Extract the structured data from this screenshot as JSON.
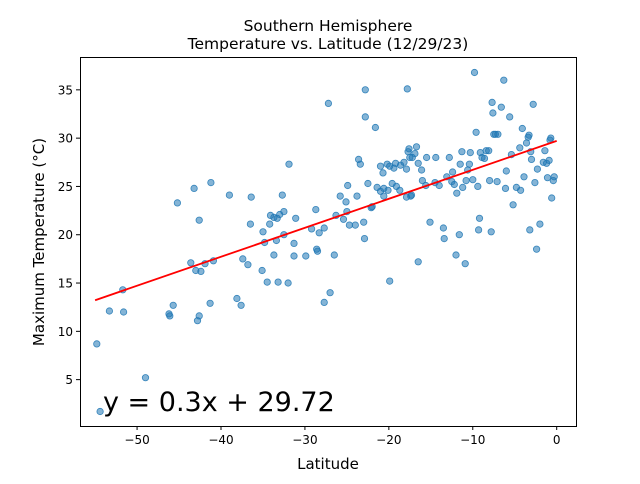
{
  "chart_data": {
    "type": "scatter",
    "title_line1": "Southern Hemisphere",
    "title_line2": "Temperature vs. Latitude (12/29/23)",
    "xlabel": "Latitude",
    "ylabel": "Maximum Temperature (°C)",
    "xlim": [
      -56.8,
      2.3
    ],
    "ylim": [
      0.2,
      38.4
    ],
    "xticks": [
      -50,
      -40,
      -30,
      -20,
      -10,
      0
    ],
    "yticks": [
      5,
      10,
      15,
      20,
      25,
      30,
      35
    ],
    "grid": false,
    "colors": {
      "points": "#1f77b4",
      "regression": "#ff0000",
      "annotation": "#ff0000"
    },
    "regression": {
      "slope": 0.3,
      "intercept": 29.72,
      "x_range": [
        -55,
        0
      ],
      "equation": "y = 0.3x + 29.72"
    },
    "points": [
      [
        -54.8,
        8.7
      ],
      [
        -54.4,
        1.7
      ],
      [
        -53.3,
        12.1
      ],
      [
        -51.7,
        14.3
      ],
      [
        -51.6,
        12.0
      ],
      [
        -49.0,
        5.2
      ],
      [
        -46.2,
        11.8
      ],
      [
        -46.1,
        11.6
      ],
      [
        -45.7,
        12.7
      ],
      [
        -45.2,
        23.3
      ],
      [
        -43.6,
        17.1
      ],
      [
        -43.2,
        24.8
      ],
      [
        -43.0,
        16.3
      ],
      [
        -42.8,
        11.1
      ],
      [
        -42.6,
        11.6
      ],
      [
        -42.6,
        21.5
      ],
      [
        -42.4,
        16.2
      ],
      [
        -41.9,
        17.0
      ],
      [
        -41.3,
        12.9
      ],
      [
        -41.2,
        25.4
      ],
      [
        -40.9,
        17.3
      ],
      [
        -39.0,
        24.1
      ],
      [
        -38.1,
        13.4
      ],
      [
        -37.6,
        12.7
      ],
      [
        -37.4,
        17.5
      ],
      [
        -36.8,
        16.9
      ],
      [
        -36.5,
        21.1
      ],
      [
        -36.4,
        23.9
      ],
      [
        -35.1,
        16.3
      ],
      [
        -35.0,
        20.3
      ],
      [
        -34.8,
        19.2
      ],
      [
        -34.5,
        15.1
      ],
      [
        -34.2,
        21.1
      ],
      [
        -34.1,
        22.0
      ],
      [
        -33.7,
        17.9
      ],
      [
        -33.7,
        21.8
      ],
      [
        -33.4,
        19.4
      ],
      [
        -33.2,
        15.1
      ],
      [
        -33.3,
        21.7
      ],
      [
        -33.0,
        22.1
      ],
      [
        -32.7,
        24.1
      ],
      [
        -32.5,
        20.0
      ],
      [
        -32.5,
        22.4
      ],
      [
        -32.0,
        15.0
      ],
      [
        -31.9,
        27.3
      ],
      [
        -31.3,
        19.1
      ],
      [
        -31.1,
        21.7
      ],
      [
        -31.3,
        17.8
      ],
      [
        -29.9,
        17.8
      ],
      [
        -29.2,
        20.6
      ],
      [
        -28.7,
        22.6
      ],
      [
        -28.6,
        18.5
      ],
      [
        -28.5,
        18.3
      ],
      [
        -28.3,
        20.2
      ],
      [
        -27.7,
        13.0
      ],
      [
        -27.7,
        20.7
      ],
      [
        -27.2,
        33.6
      ],
      [
        -27.0,
        14.0
      ],
      [
        -26.5,
        17.9
      ],
      [
        -26.3,
        22.0
      ],
      [
        -25.8,
        24.0
      ],
      [
        -25.4,
        21.6
      ],
      [
        -25.1,
        23.4
      ],
      [
        -25.0,
        22.4
      ],
      [
        -24.9,
        25.1
      ],
      [
        -24.7,
        21.0
      ],
      [
        -24.0,
        21.0
      ],
      [
        -23.8,
        24.0
      ],
      [
        -23.6,
        27.8
      ],
      [
        -23.4,
        27.3
      ],
      [
        -23.0,
        21.3
      ],
      [
        -22.9,
        19.6
      ],
      [
        -22.8,
        32.2
      ],
      [
        -22.8,
        35.0
      ],
      [
        -22.5,
        25.3
      ],
      [
        -22.1,
        22.8
      ],
      [
        -22.0,
        22.9
      ],
      [
        -21.6,
        31.1
      ],
      [
        -21.4,
        24.9
      ],
      [
        -21.0,
        24.5
      ],
      [
        -21.0,
        27.1
      ],
      [
        -20.7,
        26.4
      ],
      [
        -20.6,
        24.0
      ],
      [
        -20.6,
        24.8
      ],
      [
        -20.2,
        27.3
      ],
      [
        -20.1,
        24.6
      ],
      [
        -19.9,
        27.1
      ],
      [
        -19.9,
        15.2
      ],
      [
        -19.6,
        25.3
      ],
      [
        -19.4,
        26.9
      ],
      [
        -19.2,
        27.4
      ],
      [
        -19.1,
        25.0
      ],
      [
        -18.7,
        24.6
      ],
      [
        -18.6,
        27.2
      ],
      [
        -18.2,
        27.5
      ],
      [
        -17.9,
        26.8
      ],
      [
        -17.9,
        23.9
      ],
      [
        -17.8,
        35.1
      ],
      [
        -17.7,
        28.6
      ],
      [
        -17.6,
        28.9
      ],
      [
        -17.5,
        28.0
      ],
      [
        -17.4,
        24.0
      ],
      [
        -17.3,
        24.1
      ],
      [
        -17.2,
        28.0
      ],
      [
        -16.9,
        28.4
      ],
      [
        -16.7,
        29.1
      ],
      [
        -16.5,
        27.4
      ],
      [
        -16.5,
        17.2
      ],
      [
        -16.1,
        26.7
      ],
      [
        -16.0,
        25.6
      ],
      [
        -15.6,
        25.1
      ],
      [
        -15.5,
        28.0
      ],
      [
        -15.1,
        21.3
      ],
      [
        -14.5,
        25.4
      ],
      [
        -14.4,
        28.0
      ],
      [
        -14.0,
        25.1
      ],
      [
        -13.5,
        20.7
      ],
      [
        -13.4,
        19.6
      ],
      [
        -13.1,
        26.0
      ],
      [
        -12.8,
        28.0
      ],
      [
        -12.5,
        25.5
      ],
      [
        -12.4,
        26.5
      ],
      [
        -12.2,
        25.2
      ],
      [
        -12.0,
        17.9
      ],
      [
        -11.9,
        24.3
      ],
      [
        -11.5,
        27.3
      ],
      [
        -11.6,
        20.0
      ],
      [
        -11.3,
        28.6
      ],
      [
        -11.2,
        24.9
      ],
      [
        -10.9,
        17.0
      ],
      [
        -10.8,
        25.6
      ],
      [
        -10.6,
        26.7
      ],
      [
        -10.4,
        27.3
      ],
      [
        -10.3,
        28.5
      ],
      [
        -10.0,
        25.7
      ],
      [
        -9.8,
        36.8
      ],
      [
        -9.6,
        30.6
      ],
      [
        -9.4,
        25.0
      ],
      [
        -9.2,
        21.7
      ],
      [
        -9.3,
        20.5
      ],
      [
        -9.1,
        28.5
      ],
      [
        -8.9,
        28.0
      ],
      [
        -8.6,
        27.9
      ],
      [
        -8.4,
        28.7
      ],
      [
        -8.1,
        28.7
      ],
      [
        -8.0,
        25.6
      ],
      [
        -7.8,
        20.3
      ],
      [
        -7.7,
        33.7
      ],
      [
        -7.6,
        32.6
      ],
      [
        -7.5,
        30.4
      ],
      [
        -7.3,
        30.4
      ],
      [
        -7.1,
        25.5
      ],
      [
        -7.0,
        30.4
      ],
      [
        -6.6,
        33.2
      ],
      [
        -6.3,
        36.0
      ],
      [
        -6.1,
        24.8
      ],
      [
        -6.0,
        26.6
      ],
      [
        -5.6,
        32.2
      ],
      [
        -5.4,
        28.3
      ],
      [
        -5.2,
        23.1
      ],
      [
        -4.8,
        24.9
      ],
      [
        -4.4,
        29.0
      ],
      [
        -4.3,
        24.6
      ],
      [
        -4.1,
        31.0
      ],
      [
        -3.9,
        26.0
      ],
      [
        -3.6,
        29.5
      ],
      [
        -3.4,
        30.1
      ],
      [
        -3.3,
        30.3
      ],
      [
        -3.2,
        20.5
      ],
      [
        -3.1,
        28.6
      ],
      [
        -3.0,
        27.8
      ],
      [
        -2.8,
        33.5
      ],
      [
        -2.6,
        25.4
      ],
      [
        -2.4,
        18.5
      ],
      [
        -2.3,
        26.8
      ],
      [
        -2.0,
        21.1
      ],
      [
        -1.6,
        27.5
      ],
      [
        -1.4,
        28.7
      ],
      [
        -1.2,
        27.4
      ],
      [
        -1.1,
        25.9
      ],
      [
        -0.9,
        27.7
      ],
      [
        -0.8,
        29.8
      ],
      [
        -0.7,
        30.0
      ],
      [
        -0.6,
        23.8
      ],
      [
        -0.4,
        25.6
      ],
      [
        -0.3,
        26.0
      ]
    ]
  }
}
